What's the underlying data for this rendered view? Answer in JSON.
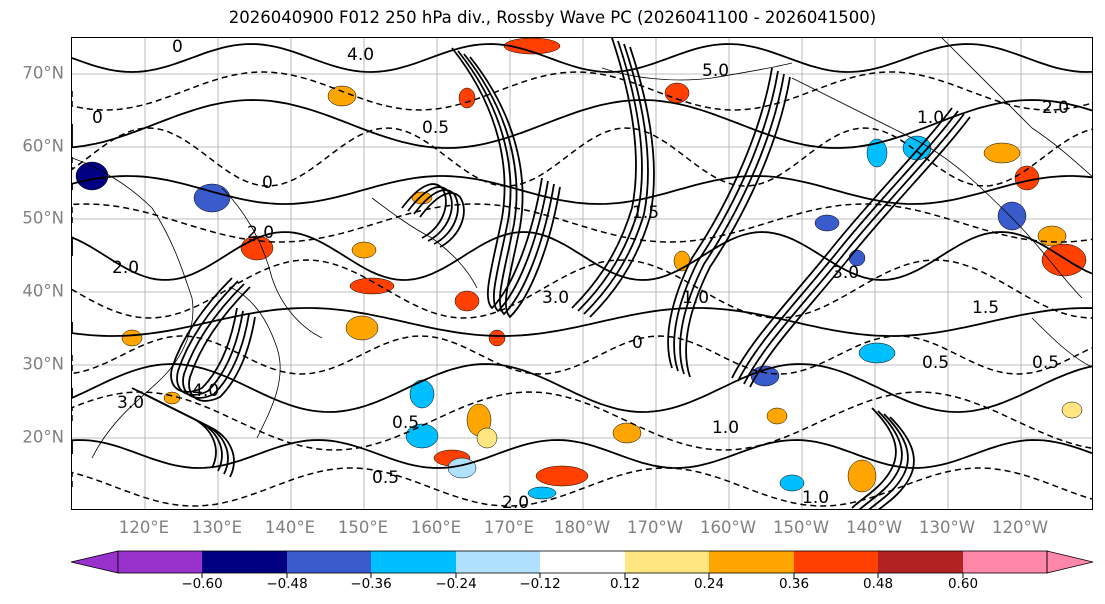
{
  "title": "2026040900 F012 250 hPa div., Rossby Wave PC (2026041100 - 2026041500)",
  "map": {
    "extent": {
      "lon_west": 112,
      "lon_east": 252,
      "lat_south": 10,
      "lat_north": 75
    },
    "lat_labels": [
      "20°N",
      "30°N",
      "40°N",
      "50°N",
      "60°N",
      "70°N"
    ],
    "lon_labels": [
      "120°E",
      "130°E",
      "140°E",
      "150°E",
      "160°E",
      "170°E",
      "180°W",
      "170°W",
      "160°W",
      "150°W",
      "140°W",
      "130°W",
      "120°W"
    ],
    "contour_labels": [
      "0",
      "0.5",
      "1.0",
      "2.0",
      "3.0",
      "4.0",
      "5.0",
      "1.5"
    ],
    "colors": {
      "coast": "#000000",
      "grid": "#aaaaaa",
      "axis_label": "#808080"
    }
  },
  "colorbar": {
    "ticks": [
      "−0.60",
      "−0.48",
      "−0.36",
      "−0.24",
      "−0.12",
      "0.12",
      "0.24",
      "0.36",
      "0.48",
      "0.60"
    ],
    "colors": [
      "#9932cc",
      "#000080",
      "#3a5bcc",
      "#00bfff",
      "#b0e2ff",
      "#ffffff",
      "#ffe680",
      "#ffa500",
      "#ff4000",
      "#b22222",
      "#ff88aa"
    ]
  }
}
